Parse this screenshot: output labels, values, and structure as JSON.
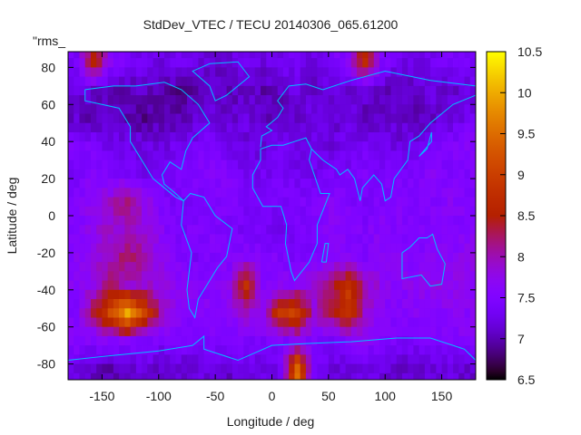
{
  "chart_data": {
    "type": "heatmap",
    "title": "StdDev_VTEC / TECU 20140306_065.61200",
    "xlabel": "Longitude / deg",
    "ylabel": "Latitude / deg",
    "corner_label": "\"rms_",
    "xlim": [
      -180,
      180
    ],
    "ylim": [
      -88.5,
      88.5
    ],
    "xticks": [
      "-150",
      "-100",
      "-50",
      "0",
      "50",
      "100",
      "150"
    ],
    "xtick_values": [
      -150,
      -100,
      -50,
      0,
      50,
      100,
      150
    ],
    "yticks": [
      "80",
      "60",
      "40",
      "20",
      "0",
      "-20",
      "-40",
      "-60",
      "-80"
    ],
    "ytick_values": [
      80,
      60,
      40,
      20,
      0,
      -20,
      -40,
      -60,
      -80
    ],
    "colorbar": {
      "range": [
        6.5,
        10.5
      ],
      "ticks": [
        "10.5",
        "10",
        "9.5",
        "9",
        "8.5",
        "8",
        "7.5",
        "7",
        "6.5"
      ],
      "tick_values": [
        10.5,
        10,
        9.5,
        9,
        8.5,
        8,
        7.5,
        7,
        6.5
      ],
      "palette": "gnuplot rgbformulae 7,5,15"
    },
    "coastline_color": "#00bfff",
    "grid": {
      "lon_centers": [
        -172.5,
        -157.5,
        -142.5,
        -127.5,
        -112.5,
        -97.5,
        -82.5,
        -67.5,
        -52.5,
        -37.5,
        -22.5,
        -7.5,
        7.5,
        22.5,
        37.5,
        52.5,
        67.5,
        82.5,
        97.5,
        112.5,
        127.5,
        142.5,
        157.5,
        172.5
      ],
      "lat_centers": [
        82.5,
        67.5,
        52.5,
        37.5,
        22.5,
        7.5,
        -7.5,
        -22.5,
        -37.5,
        -52.5,
        -67.5,
        -82.5
      ],
      "values": [
        [
          7.4,
          8.6,
          7.6,
          7.4,
          7.3,
          7.2,
          7.3,
          7.2,
          7.1,
          7.2,
          7.3,
          7.2,
          7.3,
          7.3,
          7.2,
          7.4,
          7.6,
          8.7,
          7.5,
          7.3,
          7.2,
          7.3,
          7.4,
          7.4
        ],
        [
          7.2,
          7.1,
          7.0,
          7.0,
          7.1,
          7.0,
          6.9,
          7.0,
          7.1,
          7.0,
          7.1,
          7.0,
          7.1,
          7.2,
          7.1,
          7.2,
          7.1,
          7.2,
          7.1,
          7.0,
          7.1,
          7.2,
          7.1,
          7.2
        ],
        [
          7.1,
          7.0,
          7.1,
          7.0,
          6.9,
          7.0,
          7.0,
          7.1,
          7.2,
          7.1,
          7.2,
          7.1,
          7.0,
          7.1,
          7.2,
          7.1,
          7.2,
          7.0,
          7.1,
          7.1,
          7.0,
          7.1,
          7.2,
          7.3
        ],
        [
          7.5,
          7.4,
          7.3,
          7.3,
          7.2,
          7.2,
          7.3,
          7.4,
          7.5,
          7.3,
          7.2,
          7.2,
          7.3,
          7.2,
          7.3,
          7.2,
          7.3,
          7.4,
          7.3,
          7.2,
          7.3,
          7.4,
          7.5,
          7.6
        ],
        [
          7.4,
          7.6,
          7.5,
          7.4,
          7.3,
          7.3,
          7.4,
          7.5,
          7.6,
          7.5,
          7.3,
          7.3,
          7.4,
          7.3,
          7.3,
          7.4,
          7.4,
          7.5,
          7.4,
          7.4,
          7.5,
          7.6,
          7.5,
          7.5
        ],
        [
          7.5,
          7.7,
          7.9,
          8.2,
          7.8,
          7.5,
          7.4,
          7.4,
          7.5,
          7.5,
          7.4,
          7.3,
          7.4,
          7.4,
          7.5,
          7.6,
          7.5,
          7.4,
          7.5,
          7.6,
          7.5,
          7.5,
          7.6,
          7.5
        ],
        [
          7.5,
          7.8,
          7.9,
          7.9,
          7.8,
          7.6,
          7.4,
          7.5,
          7.5,
          7.4,
          7.4,
          7.4,
          7.3,
          7.4,
          7.5,
          7.6,
          7.5,
          7.5,
          7.6,
          7.5,
          7.5,
          7.6,
          7.5,
          7.6
        ],
        [
          7.6,
          7.7,
          8.0,
          8.2,
          8.1,
          7.7,
          7.5,
          7.4,
          7.5,
          7.5,
          7.6,
          7.5,
          7.5,
          7.4,
          7.5,
          7.6,
          7.6,
          7.5,
          7.7,
          7.6,
          7.5,
          7.6,
          7.6,
          7.7
        ],
        [
          7.6,
          7.8,
          8.3,
          7.9,
          7.9,
          7.8,
          7.6,
          7.6,
          7.5,
          7.7,
          8.8,
          7.6,
          7.6,
          7.7,
          7.8,
          8.2,
          8.8,
          8.0,
          7.7,
          7.6,
          7.7,
          7.7,
          7.8,
          7.7
        ],
        [
          7.5,
          8.3,
          9.1,
          10.0,
          9.0,
          8.0,
          7.6,
          7.6,
          7.6,
          7.7,
          7.9,
          7.8,
          8.9,
          9.0,
          7.9,
          8.3,
          8.9,
          7.9,
          7.6,
          7.5,
          7.6,
          7.6,
          7.6,
          7.6
        ],
        [
          7.6,
          7.5,
          7.6,
          7.6,
          7.5,
          7.4,
          7.5,
          7.4,
          7.5,
          7.4,
          7.5,
          7.4,
          7.5,
          7.6,
          7.5,
          7.4,
          7.5,
          7.6,
          7.5,
          7.4,
          7.4,
          7.5,
          7.5,
          7.6
        ],
        [
          7.2,
          7.1,
          7.0,
          7.1,
          7.2,
          7.1,
          7.1,
          7.2,
          7.2,
          7.1,
          7.3,
          7.2,
          7.3,
          9.5,
          7.3,
          7.2,
          7.2,
          7.3,
          7.2,
          7.1,
          7.1,
          7.2,
          7.2,
          7.1
        ]
      ]
    }
  }
}
